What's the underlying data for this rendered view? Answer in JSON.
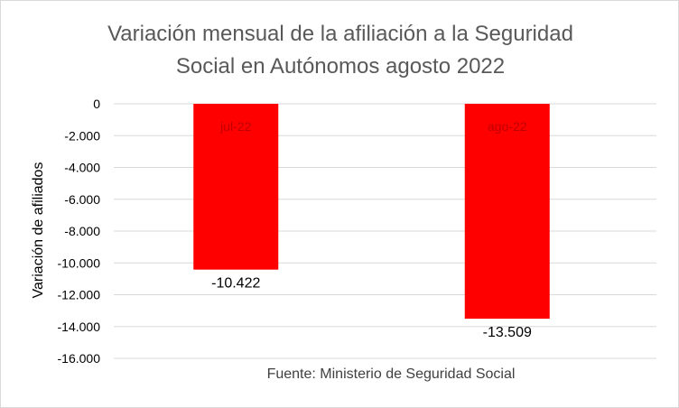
{
  "chart_data": {
    "type": "bar",
    "title": "Variación mensual de la afiliación a la Seguridad Social en Autónomos agosto 2022",
    "title_lines": [
      "Variación mensual de la afiliación a la Seguridad",
      "Social en Autónomos agosto 2022"
    ],
    "categories": [
      "jul-22",
      "ago-22"
    ],
    "values": [
      -10422,
      -13509
    ],
    "value_labels": [
      "-10.422",
      "-13.509"
    ],
    "xlabel": "Fuente: Ministerio de Seguridad Social",
    "ylabel": "Variación de afiliados",
    "ylim": [
      -16000,
      0
    ],
    "yticks": [
      0,
      -2000,
      -4000,
      -6000,
      -8000,
      -10000,
      -12000,
      -14000,
      -16000
    ],
    "ytick_labels": [
      "0",
      "-2.000",
      "-4.000",
      "-6.000",
      "-8.000",
      "-10.000",
      "-12.000",
      "-14.000",
      "-16.000"
    ],
    "grid": true,
    "legend": "none",
    "bar_color": "#ff0000",
    "category_label_color": "#c00000",
    "gridline_color": "#d9d9d9"
  }
}
